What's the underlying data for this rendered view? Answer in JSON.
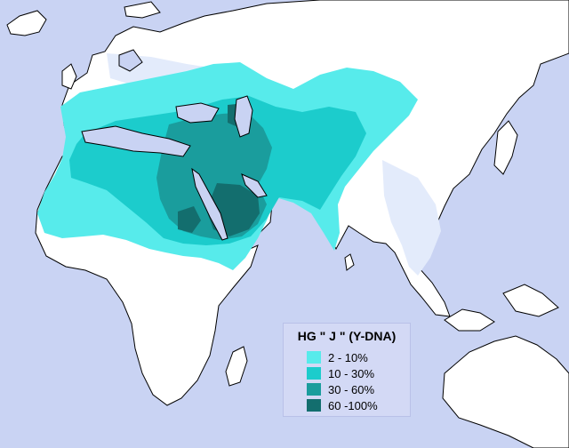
{
  "map": {
    "ocean_color": "#c9d3f3",
    "land_color": "#ffffff",
    "coast_color": "#000000"
  },
  "legend": {
    "title": "HG \" J \" (Y-DNA)",
    "entries": [
      {
        "label": "2  - 10%",
        "color": "#57ebeb"
      },
      {
        "label": "10 - 30%",
        "color": "#1ccccc"
      },
      {
        "label": "30 - 60%",
        "color": "#1a9d9d"
      },
      {
        "label": "60 -100%",
        "color": "#136e6e"
      }
    ]
  }
}
